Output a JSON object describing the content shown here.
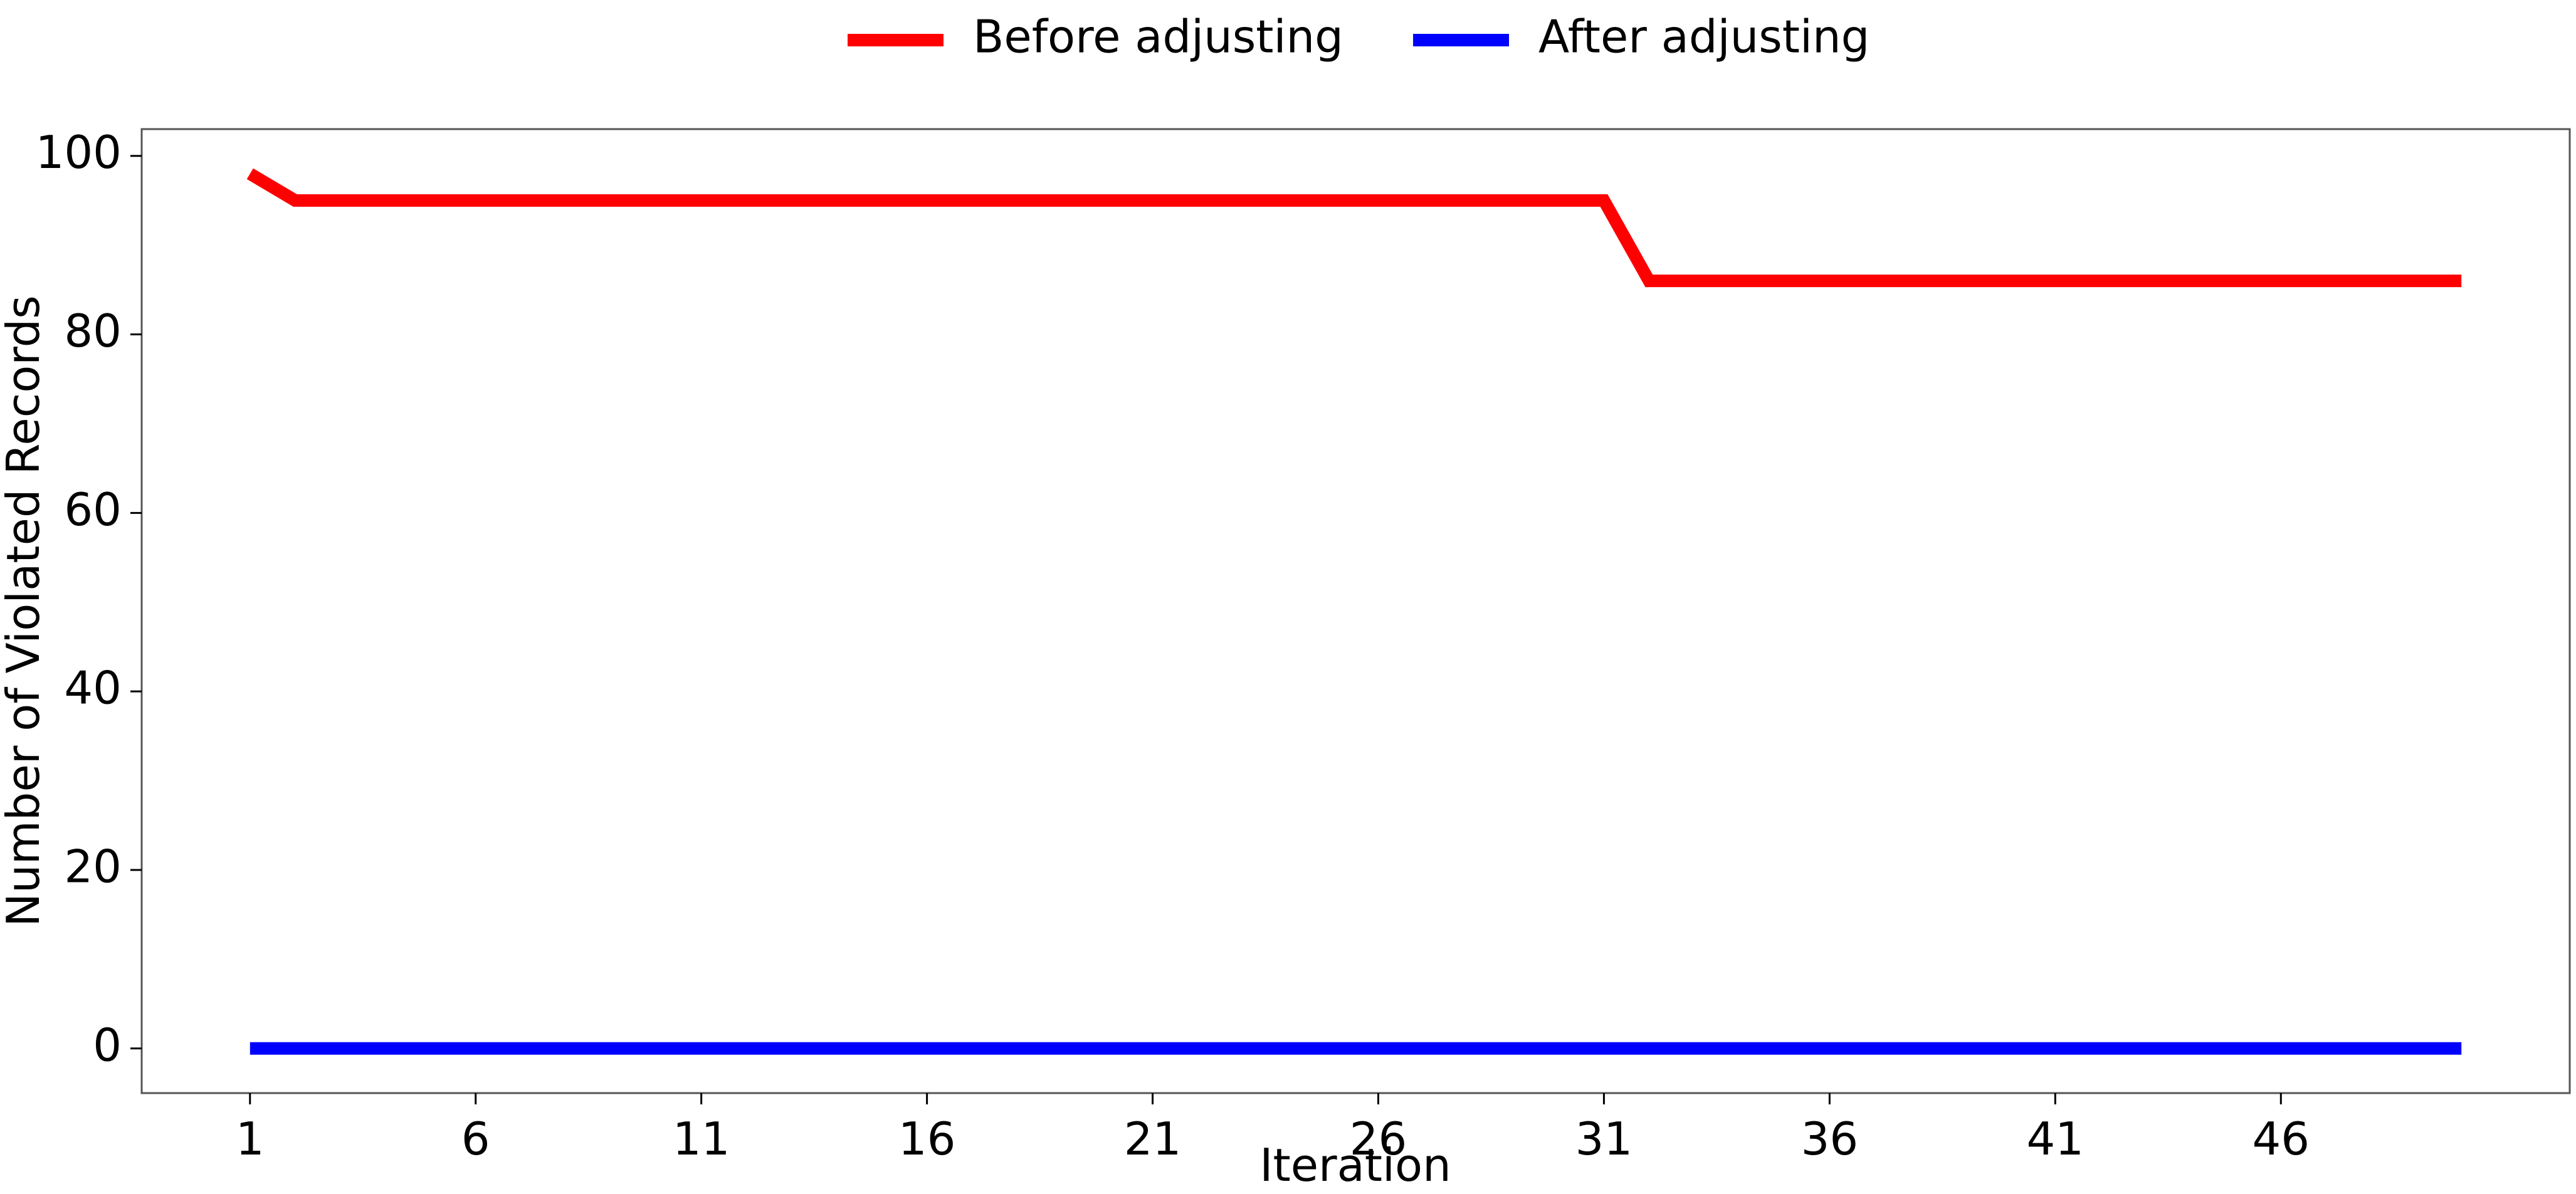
{
  "chart_data": {
    "type": "line",
    "title": "",
    "xlabel": "Iteration",
    "ylabel": "Number of Violated Records",
    "xlim": [
      -1.4,
      52.4
    ],
    "ylim": [
      -5,
      103
    ],
    "x_ticks": [
      1,
      6,
      11,
      16,
      21,
      26,
      31,
      36,
      41,
      46
    ],
    "y_ticks": [
      0,
      20,
      40,
      60,
      80,
      100
    ],
    "grid": false,
    "legend_position": "top-center",
    "x": [
      1,
      2,
      3,
      4,
      5,
      6,
      7,
      8,
      9,
      10,
      11,
      12,
      13,
      14,
      15,
      16,
      17,
      18,
      19,
      20,
      21,
      22,
      23,
      24,
      25,
      26,
      27,
      28,
      29,
      30,
      31,
      32,
      33,
      34,
      35,
      36,
      37,
      38,
      39,
      40,
      41,
      42,
      43,
      44,
      45,
      46,
      47,
      48,
      49,
      50
    ],
    "series": [
      {
        "name": "Before adjusting",
        "color": "#ff0000",
        "values": [
          98,
          95,
          95,
          95,
          95,
          95,
          95,
          95,
          95,
          95,
          95,
          95,
          95,
          95,
          95,
          95,
          95,
          95,
          95,
          95,
          95,
          95,
          95,
          95,
          95,
          95,
          95,
          95,
          95,
          95,
          95,
          86,
          86,
          86,
          86,
          86,
          86,
          86,
          86,
          86,
          86,
          86,
          86,
          86,
          86,
          86,
          86,
          86,
          86,
          86
        ]
      },
      {
        "name": "After adjusting",
        "color": "#0000ff",
        "values": [
          0,
          0,
          0,
          0,
          0,
          0,
          0,
          0,
          0,
          0,
          0,
          0,
          0,
          0,
          0,
          0,
          0,
          0,
          0,
          0,
          0,
          0,
          0,
          0,
          0,
          0,
          0,
          0,
          0,
          0,
          0,
          0,
          0,
          0,
          0,
          0,
          0,
          0,
          0,
          0,
          0,
          0,
          0,
          0,
          0,
          0,
          0,
          0,
          0,
          0
        ]
      }
    ]
  }
}
